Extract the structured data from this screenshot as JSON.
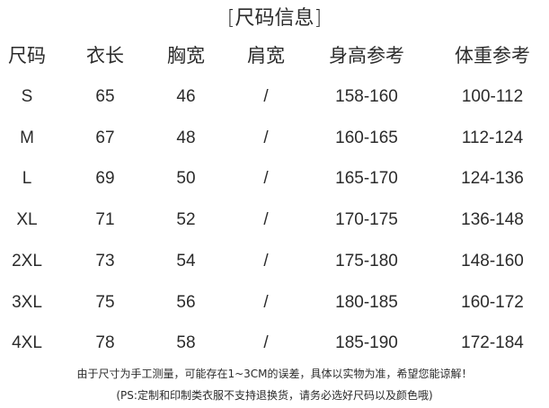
{
  "title": "[尺码信息]",
  "headers": [
    "尺码",
    "衣长",
    "胸宽",
    "肩宽",
    "身高参考",
    "体重参考"
  ],
  "rows": [
    [
      "S",
      "65",
      "46",
      "/",
      "158-160",
      "100-112"
    ],
    [
      "M",
      "67",
      "48",
      "/",
      "160-165",
      "112-124"
    ],
    [
      "L",
      "69",
      "50",
      "/",
      "165-170",
      "124-136"
    ],
    [
      "XL",
      "71",
      "52",
      "/",
      "170-175",
      "136-148"
    ],
    [
      "2XL",
      "73",
      "54",
      "/",
      "175-180",
      "148-160"
    ],
    [
      "3XL",
      "75",
      "56",
      "/",
      "180-185",
      "160-172"
    ],
    [
      "4XL",
      "78",
      "58",
      "/",
      "185-190",
      "172-184"
    ]
  ],
  "notes": [
    "由于尺寸为手工测量，可能存在1~3CM的误差，具体以实物为准，希望您能谅解！",
    "(PS:定制和印制类衣服不支持退换货，请务必选好尺码以及颜色哦)"
  ]
}
